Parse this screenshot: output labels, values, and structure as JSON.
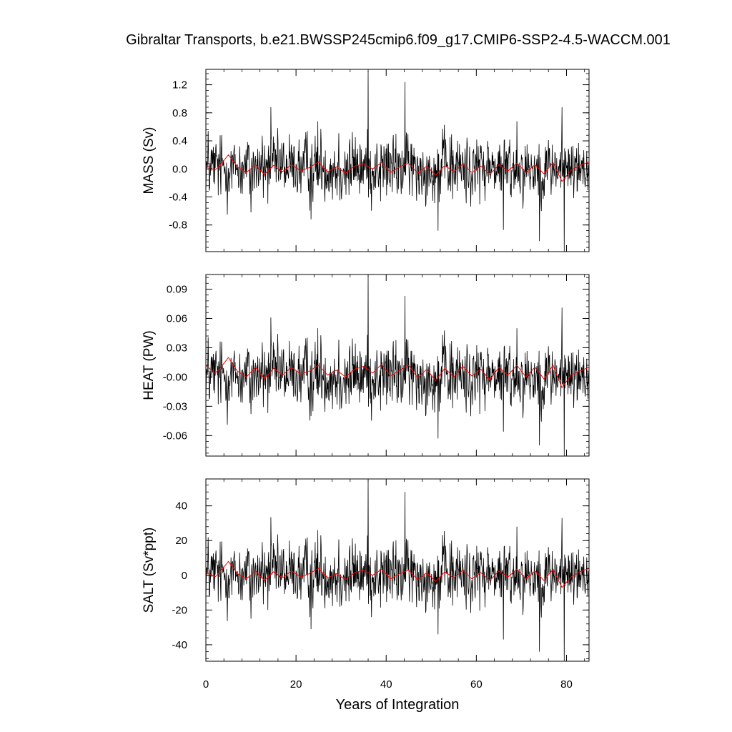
{
  "chart_data": [
    {
      "type": "line",
      "title": "Gibraltar Transports, b.e21.BWSSP245cmip6.f09_g17.CMIP6-SSP2-4.5-WACCM.001",
      "xlabel": "Years of Integration",
      "ylabel": "MASS (Sv)",
      "xlim": [
        0,
        85
      ],
      "ylim": [
        -1.18,
        1.42
      ],
      "yticks": [
        "1.2",
        "0.8",
        "0.4",
        "0.0",
        "-0.4",
        "-0.8"
      ],
      "ytick_values": [
        1.2,
        0.8,
        0.4,
        0.0,
        -0.4,
        -0.8
      ],
      "series": [
        {
          "color": "#000000",
          "style": "monthly",
          "amplitude": 0.21,
          "spikes": [
            [
              36.0,
              1.4
            ],
            [
              44.2,
              1.24
            ],
            [
              14.4,
              0.88
            ],
            [
              24.8,
              0.68
            ],
            [
              69.0,
              0.68
            ],
            [
              79.0,
              0.88
            ],
            [
              51.5,
              -0.88
            ],
            [
              66.0,
              -0.87
            ],
            [
              74.0,
              -1.03
            ],
            [
              79.5,
              -1.18
            ],
            [
              23.3,
              -0.72
            ],
            [
              10.0,
              -0.62
            ]
          ],
          "values": [
            0.12,
            -0.18,
            0.25,
            0.05,
            -0.3,
            0.15,
            0.42,
            -0.12,
            0.08,
            -0.45,
            0.3,
            0.1
          ]
        },
        {
          "color": "#ff0000",
          "style": "smoothed",
          "x": [
            0,
            2,
            3,
            5,
            7,
            9,
            11,
            13,
            15,
            17,
            19,
            21,
            23,
            25,
            27,
            29,
            31,
            33,
            35,
            37,
            39,
            41,
            43,
            45,
            47,
            49,
            51,
            53,
            55,
            57,
            59,
            61,
            63,
            65,
            67,
            69,
            71,
            73,
            75,
            77,
            79,
            81,
            83,
            85
          ],
          "values": [
            0.05,
            -0.02,
            0.04,
            0.2,
            0.03,
            -0.05,
            0.06,
            -0.08,
            0.05,
            -0.04,
            0.06,
            -0.03,
            0.02,
            0.1,
            -0.04,
            0.03,
            -0.06,
            0.04,
            0.07,
            0.0,
            0.09,
            -0.05,
            0.03,
            0.08,
            -0.06,
            0.04,
            -0.09,
            0.05,
            -0.04,
            0.07,
            -0.05,
            0.04,
            -0.08,
            0.06,
            -0.03,
            0.08,
            -0.05,
            0.06,
            -0.07,
            0.09,
            -0.18,
            -0.02,
            0.05,
            0.1
          ]
        }
      ]
    },
    {
      "type": "line",
      "xlabel": "Years of Integration",
      "ylabel": "HEAT (PW)",
      "xlim": [
        0,
        85
      ],
      "ylim": [
        -0.081,
        0.105
      ],
      "yticks": [
        "0.09",
        "0.06",
        "0.03",
        "-0.00",
        "-0.03",
        "-0.06"
      ],
      "ytick_values": [
        0.09,
        0.06,
        0.03,
        0.0,
        -0.03,
        -0.06
      ],
      "series": [
        {
          "color": "#000000",
          "style": "monthly",
          "amplitude": 0.016,
          "spikes": [
            [
              36.0,
              0.105
            ],
            [
              44.2,
              0.083
            ],
            [
              14.4,
              0.061
            ],
            [
              24.8,
              0.05
            ],
            [
              69.0,
              0.05
            ],
            [
              79.0,
              0.071
            ],
            [
              51.5,
              -0.063
            ],
            [
              66.0,
              -0.056
            ],
            [
              74.0,
              -0.07
            ],
            [
              79.5,
              -0.081
            ],
            [
              23.3,
              -0.04
            ],
            [
              10.0,
              -0.038
            ]
          ],
          "values": [
            0.01,
            -0.012,
            0.018,
            0.004,
            -0.02,
            0.011,
            0.03,
            -0.009,
            0.006,
            -0.032,
            0.022,
            0.007
          ]
        },
        {
          "color": "#ff0000",
          "style": "smoothed",
          "x": [
            0,
            2,
            3,
            5,
            7,
            9,
            11,
            13,
            15,
            17,
            19,
            21,
            23,
            25,
            27,
            29,
            31,
            33,
            35,
            37,
            39,
            41,
            43,
            45,
            47,
            49,
            51,
            53,
            55,
            57,
            59,
            61,
            63,
            65,
            67,
            69,
            71,
            73,
            75,
            77,
            79,
            81,
            83,
            85
          ],
          "values": [
            0.012,
            0.004,
            0.008,
            0.02,
            0.006,
            0.0,
            0.01,
            -0.002,
            0.009,
            0.002,
            0.01,
            0.003,
            0.006,
            0.012,
            0.002,
            0.007,
            0.0,
            0.008,
            0.011,
            0.004,
            0.013,
            0.001,
            0.007,
            0.012,
            -0.001,
            0.008,
            -0.004,
            0.009,
            0.0,
            0.011,
            0.001,
            0.008,
            -0.003,
            0.01,
            0.002,
            0.012,
            0.0,
            0.01,
            -0.002,
            0.012,
            -0.011,
            0.002,
            0.006,
            0.01
          ]
        }
      ]
    },
    {
      "type": "line",
      "xlabel": "Years of Integration",
      "ylabel": "SALT (Sv*ppt)",
      "xlim": [
        0,
        85
      ],
      "ylim": [
        -49.5,
        55.5
      ],
      "yticks": [
        "40",
        "20",
        "0",
        "-20",
        "-40"
      ],
      "ytick_values": [
        40,
        20,
        0,
        -20,
        -40
      ],
      "series": [
        {
          "color": "#000000",
          "style": "monthly",
          "amplitude": 8.5,
          "spikes": [
            [
              36.0,
              55.0
            ],
            [
              44.2,
              48.0
            ],
            [
              14.4,
              33.5
            ],
            [
              24.8,
              26.0
            ],
            [
              69.0,
              28.0
            ],
            [
              79.0,
              33.0
            ],
            [
              51.5,
              -34.0
            ],
            [
              66.0,
              -37.0
            ],
            [
              74.0,
              -44.0
            ],
            [
              79.5,
              -49.5
            ],
            [
              23.3,
              -31.0
            ],
            [
              10.0,
              -25.0
            ]
          ],
          "values": [
            4.0,
            -7.0,
            10.0,
            2.0,
            -12.0,
            6.0,
            17.0,
            -5.0,
            3.0,
            -18.0,
            12.0,
            4.0
          ]
        },
        {
          "color": "#ff0000",
          "style": "smoothed",
          "x": [
            0,
            2,
            3,
            5,
            7,
            9,
            11,
            13,
            15,
            17,
            19,
            21,
            23,
            25,
            27,
            29,
            31,
            33,
            35,
            37,
            39,
            41,
            43,
            45,
            47,
            49,
            51,
            53,
            55,
            57,
            59,
            61,
            63,
            65,
            67,
            69,
            71,
            73,
            75,
            77,
            79,
            81,
            83,
            85
          ],
          "values": [
            2.0,
            -1.0,
            1.5,
            8.0,
            1.0,
            -2.0,
            2.5,
            -3.0,
            2.0,
            -1.5,
            2.5,
            -1.0,
            1.0,
            4.0,
            -1.5,
            1.0,
            -2.5,
            1.5,
            3.0,
            0.0,
            3.5,
            -2.0,
            1.0,
            3.0,
            -2.5,
            1.5,
            -3.5,
            2.0,
            -1.5,
            3.0,
            -2.0,
            1.5,
            -3.0,
            2.5,
            -1.0,
            3.5,
            -2.0,
            2.5,
            -3.0,
            3.5,
            -7.0,
            -1.0,
            2.0,
            4.0
          ]
        }
      ]
    }
  ],
  "x_axis": {
    "ticks": [
      "0",
      "20",
      "40",
      "60",
      "80"
    ],
    "tick_values": [
      0,
      20,
      40,
      60,
      80
    ]
  }
}
